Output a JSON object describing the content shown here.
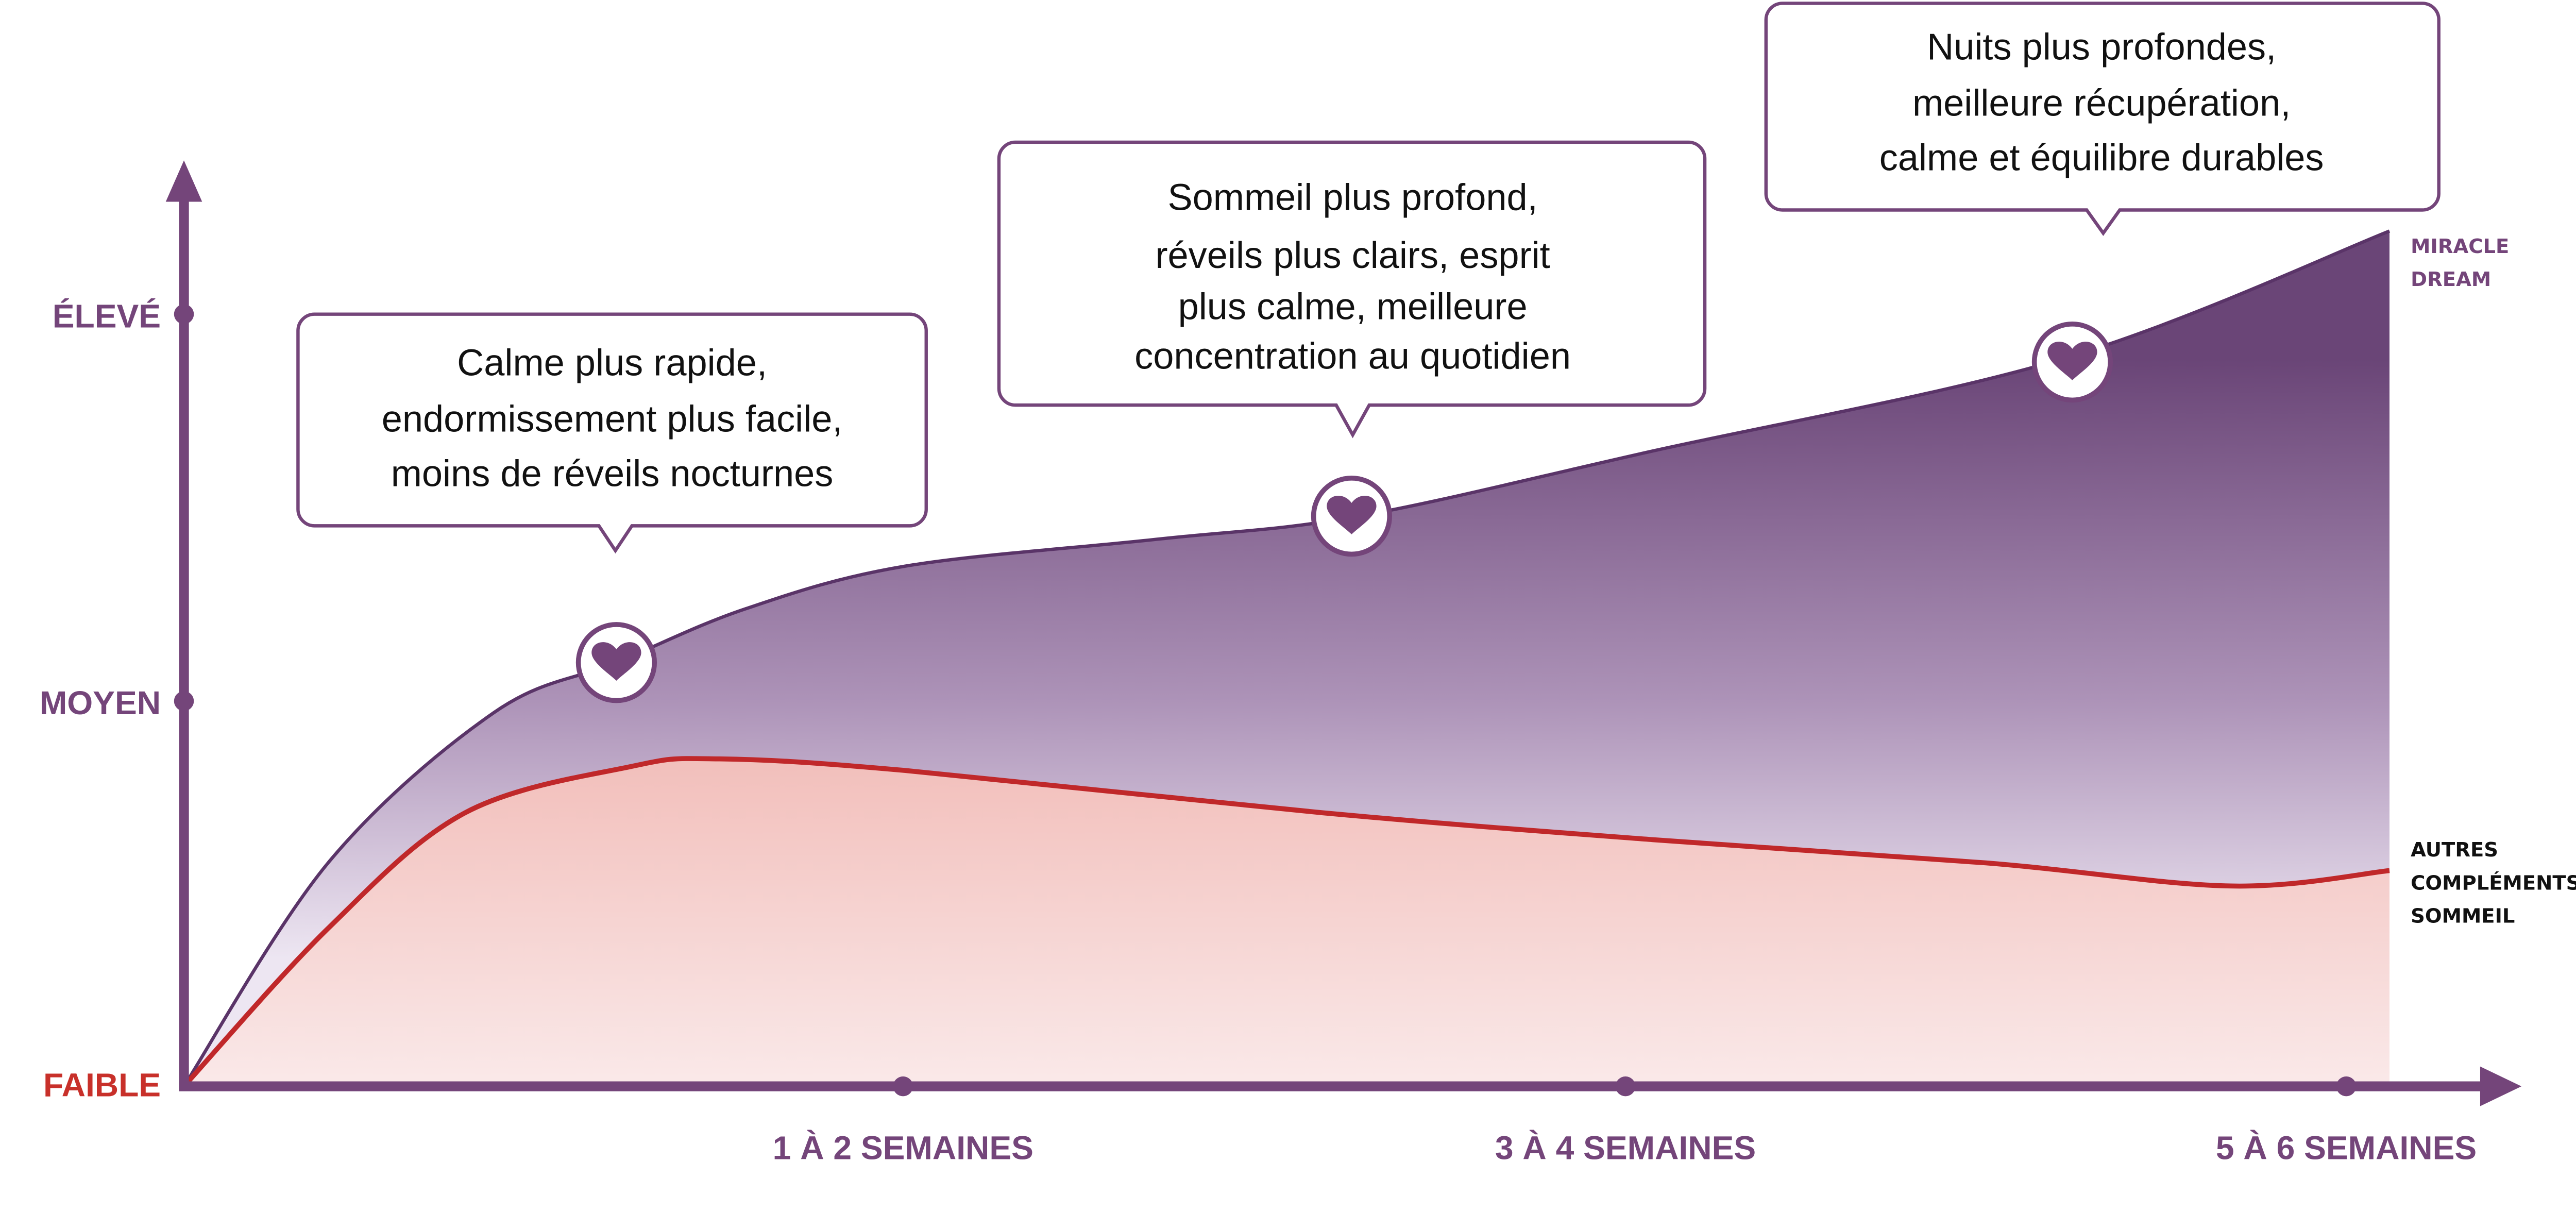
{
  "chart_data": {
    "type": "area",
    "title": "",
    "xlabel": "",
    "ylabel": "",
    "x_tick_labels": [
      "1 À 2 SEMAINES",
      "3 À 4 SEMAINES",
      "5 À 6 SEMAINES"
    ],
    "y_tick_labels": [
      "FAIBLE",
      "MOYEN",
      "ÉLEVÉ"
    ],
    "grid": false,
    "legend_placement": "right",
    "series": [
      {
        "name": "MIRACLE DREAM",
        "name_lines": [
          "MIRACLE",
          "DREAM"
        ],
        "color": "#74457a",
        "points": [
          [
            0,
            0
          ],
          [
            0.2,
            0.58
          ],
          [
            0.43,
            0.97
          ],
          [
            0.6,
            1.1
          ],
          [
            0.78,
            1.24
          ],
          [
            1.0,
            1.35
          ],
          [
            1.35,
            1.42
          ],
          [
            1.63,
            1.48
          ],
          [
            2.04,
            1.65
          ],
          [
            2.61,
            1.89
          ],
          [
            3.06,
            2.22
          ]
        ]
      },
      {
        "name": "AUTRES COMPLÉMENTS SOMMEIL",
        "name_lines": [
          "AUTRES",
          "COMPLÉMENTS",
          "SOMMEIL"
        ],
        "color": "#c0282a",
        "points": [
          [
            0,
            0
          ],
          [
            0.2,
            0.41
          ],
          [
            0.39,
            0.71
          ],
          [
            0.62,
            0.83
          ],
          [
            0.74,
            0.85
          ],
          [
            1.0,
            0.82
          ],
          [
            1.58,
            0.71
          ],
          [
            2.04,
            0.64
          ],
          [
            2.5,
            0.58
          ],
          [
            2.84,
            0.52
          ],
          [
            3.06,
            0.56
          ]
        ]
      }
    ],
    "annotations": [
      {
        "lines": [
          "Calme plus rapide,",
          "endormissement plus facile,",
          "moins de réveils nocturnes"
        ],
        "icon": "heart-icon",
        "at": [
          0.6,
          1.1
        ]
      },
      {
        "lines": [
          "Sommeil plus profond,",
          "réveils plus clairs, esprit",
          "plus calme, meilleure",
          "concentration au quotidien"
        ],
        "icon": "heart-icon",
        "at": [
          1.62,
          1.48
        ]
      },
      {
        "lines": [
          "Nuits plus profondes,",
          "meilleure récupération,",
          "calme et équilibre durables"
        ],
        "icon": "heart-icon",
        "at": [
          2.62,
          1.88
        ]
      }
    ],
    "colors": {
      "axis": "#74457a",
      "low_label": "#c8302a",
      "purple_fill_top": "#6a4577",
      "red_fill_top": "#f2c0bc"
    }
  }
}
